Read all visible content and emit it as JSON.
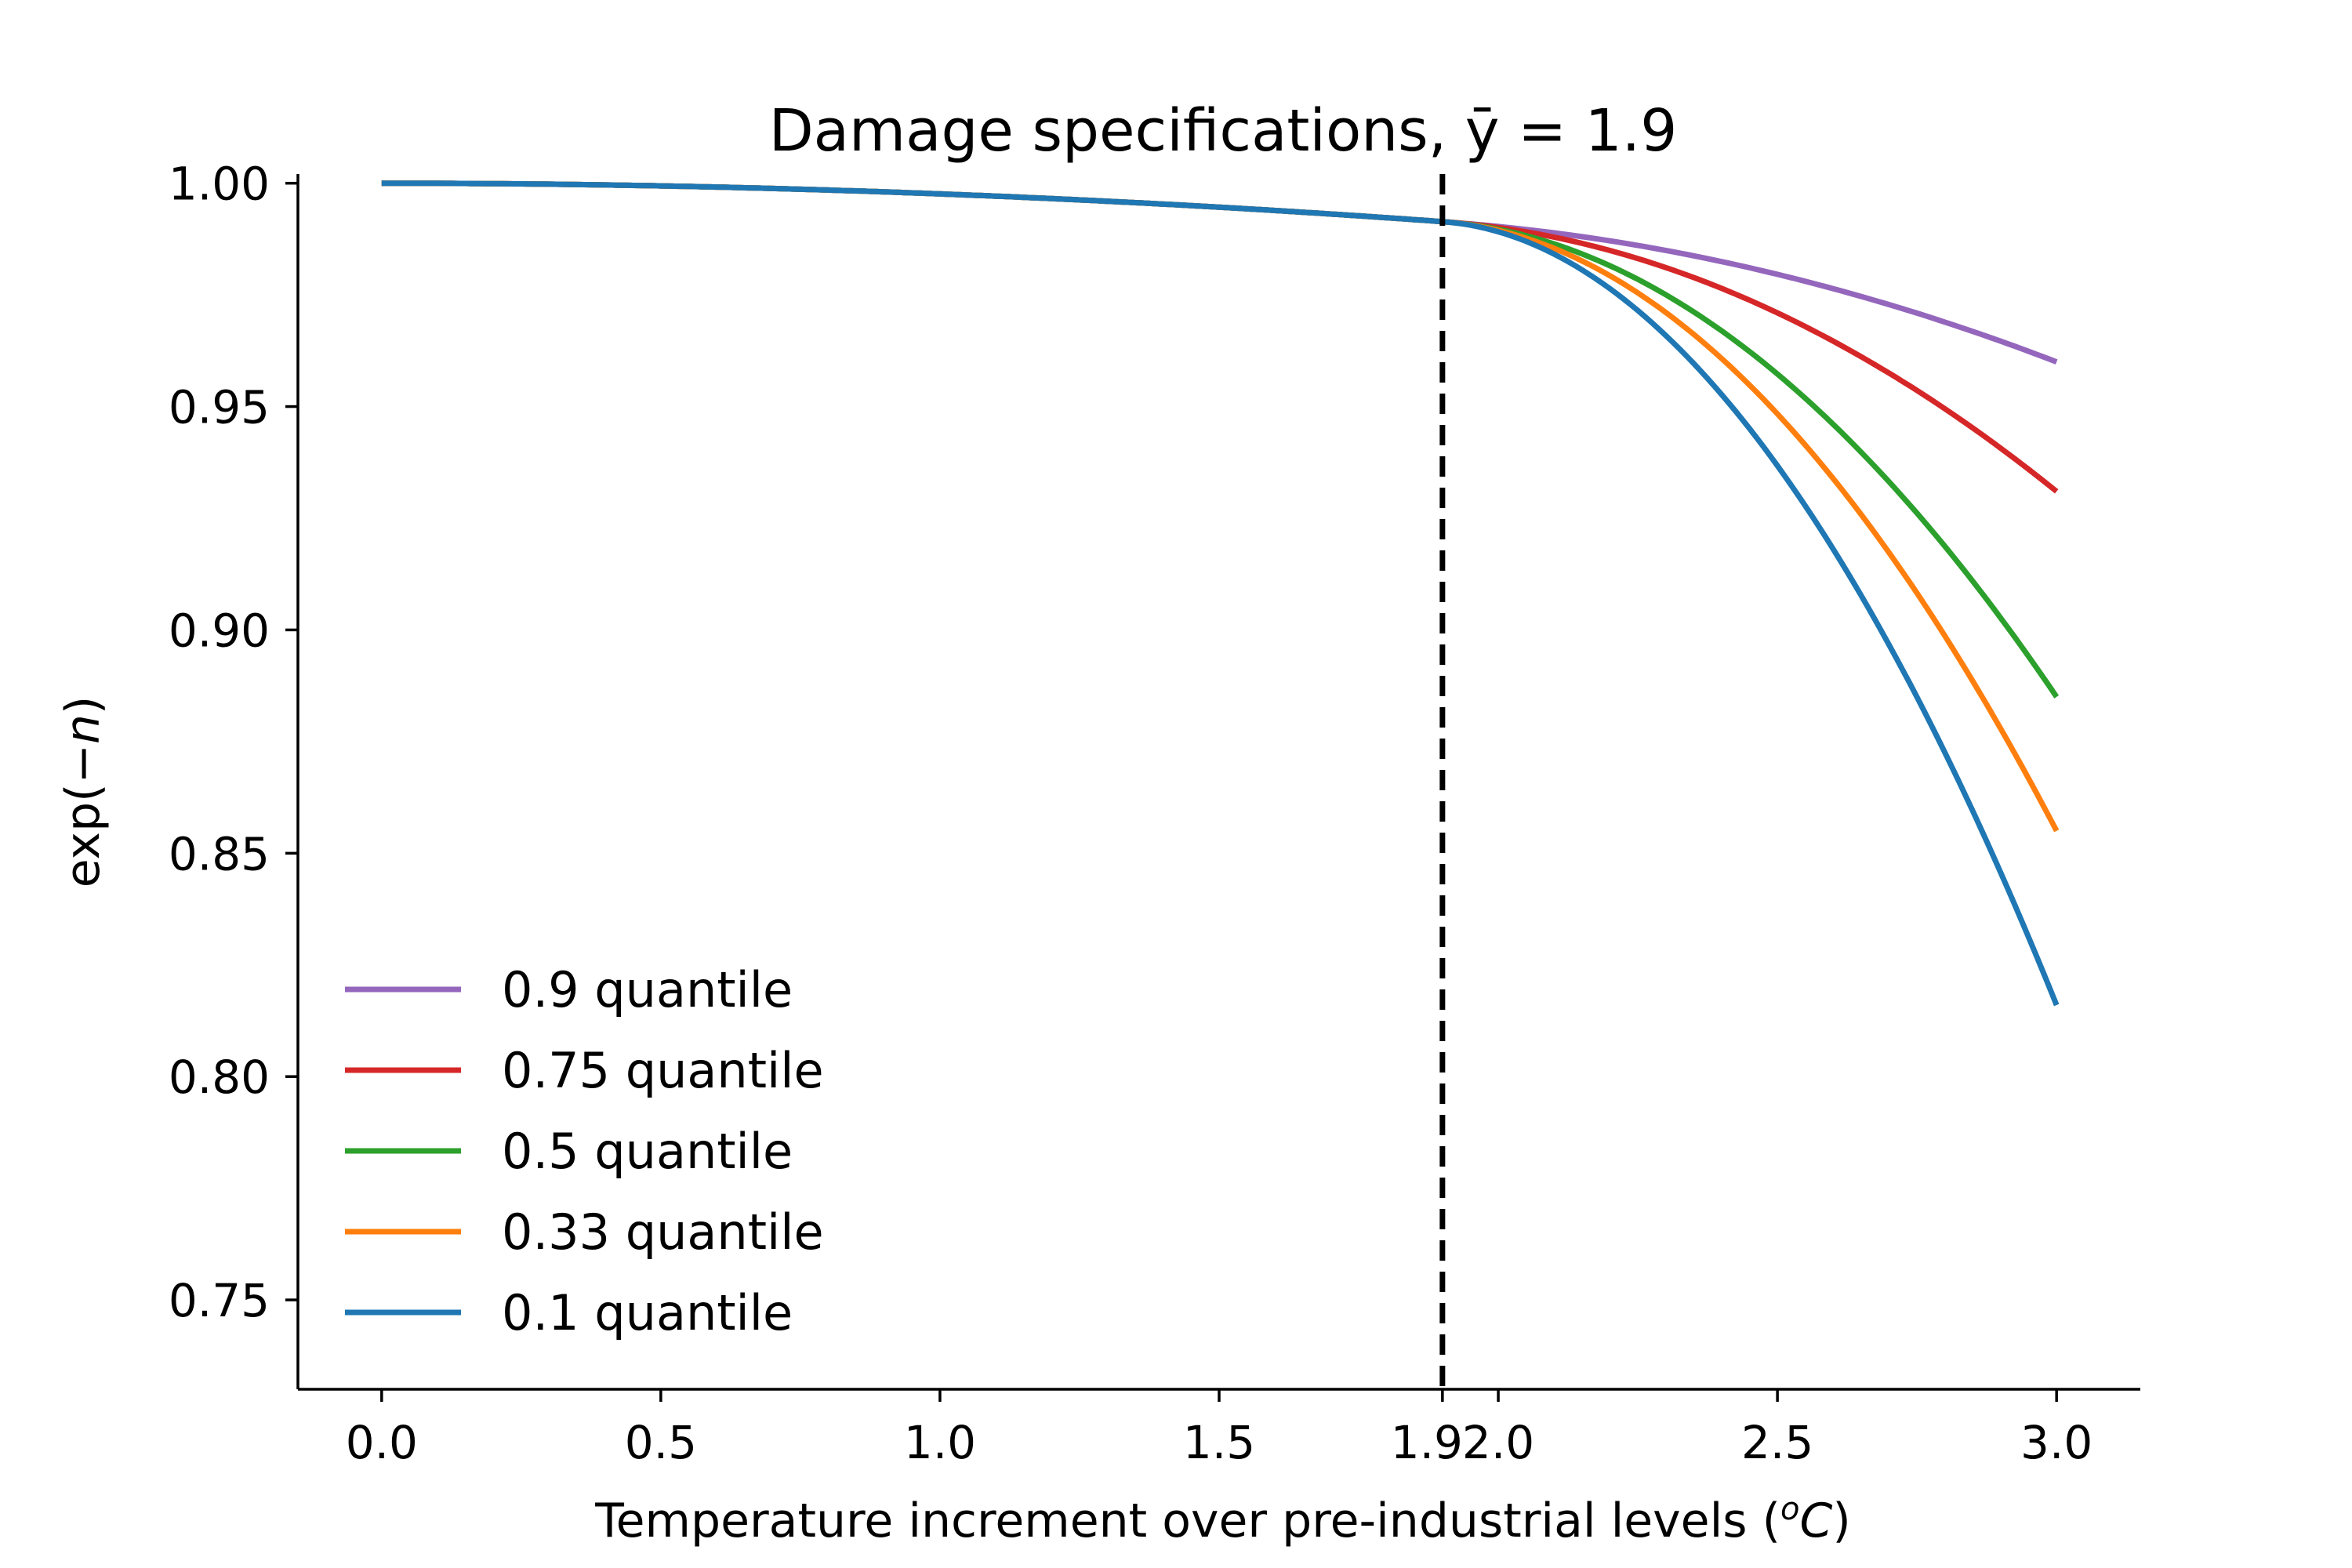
{
  "chart_data": {
    "type": "line",
    "title": "Damage specifications, ȳ = 1.9",
    "xlabel_prefix": "Temperature increment over pre-industrial levels (",
    "xlabel_unit_sup": "o",
    "xlabel_unit_main": "C",
    "xlabel_suffix": ")",
    "ylabel_prefix": "exp(−",
    "ylabel_var": "n",
    "ylabel_suffix": ")",
    "xlim": [
      -0.15,
      3.15
    ],
    "ylim": [
      0.73,
      1.001
    ],
    "xticks": [
      0.0,
      0.5,
      1.0,
      1.5,
      1.9,
      2.0,
      2.5,
      3.0
    ],
    "xtick_labels": [
      "0.0",
      "0.5",
      "1.0",
      "1.5",
      "1.9",
      "2.0",
      "2.5",
      "3.0"
    ],
    "yticks": [
      0.75,
      0.8,
      0.85,
      0.9,
      0.95,
      1.0
    ],
    "ytick_labels": [
      "0.75",
      "0.80",
      "0.85",
      "0.90",
      "0.95",
      "1.00"
    ],
    "threshold": {
      "x": 1.9,
      "y": 0.9914,
      "style": "dashed",
      "color": "#000000"
    },
    "grid": false,
    "legend_position": "lower-left",
    "series": [
      {
        "name": "0.9 quantile",
        "color": "#9467bd",
        "x_end": 3.0,
        "y_end": 0.96
      },
      {
        "name": "0.75 quantile",
        "color": "#d62728",
        "x_end": 3.0,
        "y_end": 0.931
      },
      {
        "name": "0.5 quantile",
        "color": "#2ca02c",
        "x_end": 3.0,
        "y_end": 0.885
      },
      {
        "name": "0.33 quantile",
        "color": "#ff7f0e",
        "x_end": 3.0,
        "y_end": 0.855
      },
      {
        "name": "0.1 quantile",
        "color": "#1f77b4",
        "x_end": 3.0,
        "y_end": 0.816
      }
    ]
  }
}
